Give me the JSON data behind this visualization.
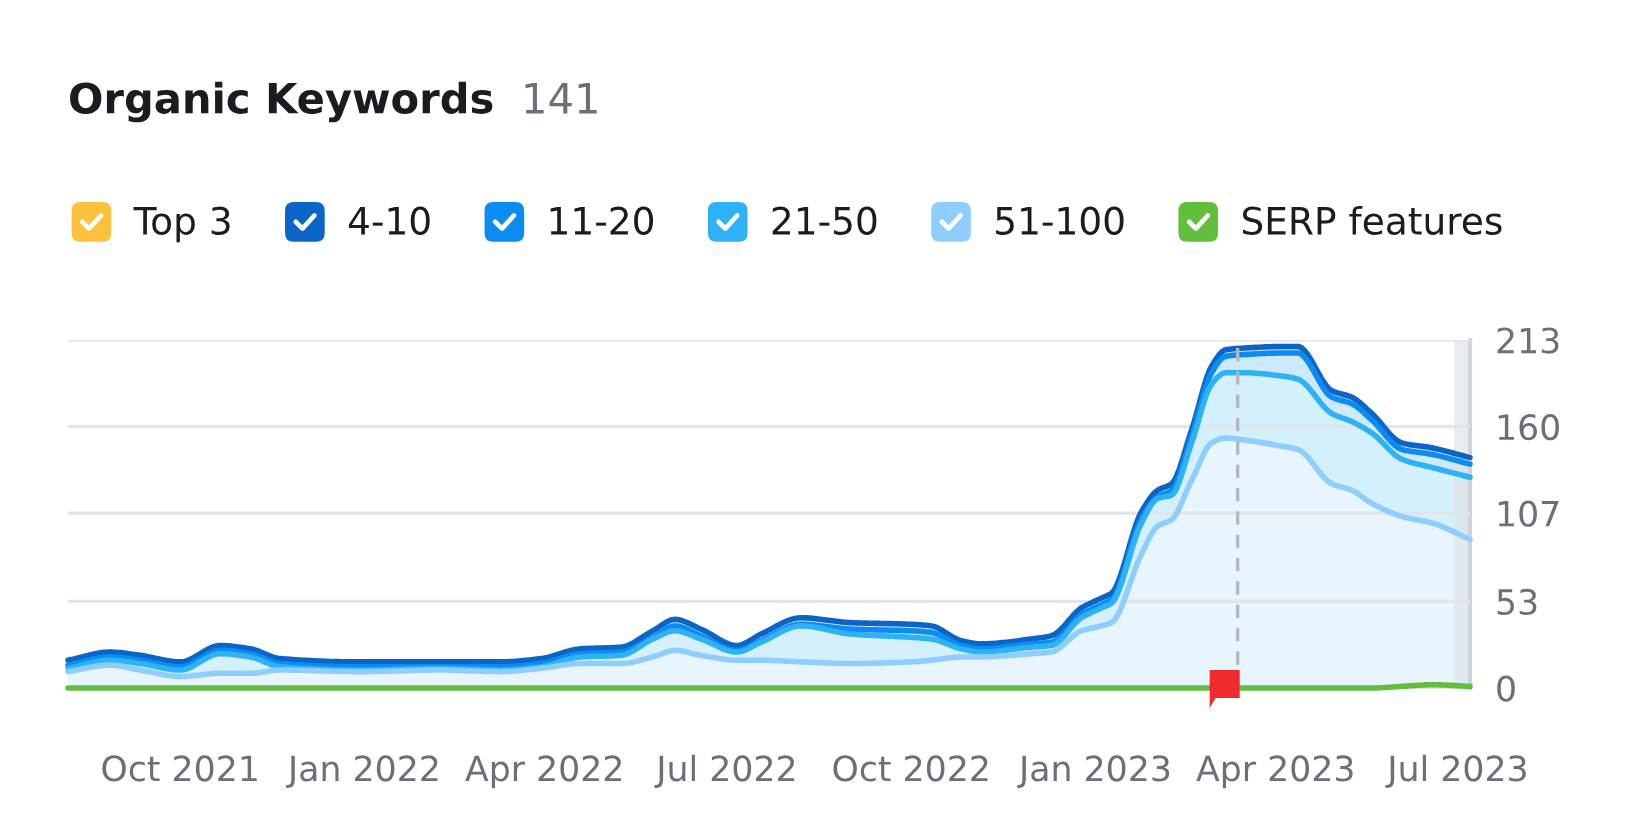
{
  "chart_data": {
    "type": "area",
    "title": "Organic Keywords",
    "subtitle": "141",
    "stacked": true,
    "grid": "y",
    "legend": "top",
    "x": [
      "2021-08-06",
      "2021-08-27",
      "2021-09-11",
      "2021-10-01",
      "2021-10-21",
      "2021-11-05",
      "2021-11-20",
      "2021-12-30",
      "2022-02-08",
      "2022-03-10",
      "2022-03-30",
      "2022-04-19",
      "2022-05-09",
      "2022-05-25",
      "2022-06-05",
      "2022-06-18",
      "2022-07-06",
      "2022-07-18",
      "2022-08-07",
      "2022-09-01",
      "2022-10-01",
      "2022-10-11",
      "2022-10-26",
      "2022-11-05",
      "2022-11-30",
      "2022-12-10",
      "2022-12-25",
      "2023-01-04",
      "2023-01-09",
      "2023-01-24",
      "2023-02-01",
      "2023-02-08",
      "2023-02-18",
      "2023-02-28",
      "2023-03-07",
      "2023-03-15",
      "2023-04-04",
      "2023-04-12",
      "2023-04-29",
      "2023-05-09",
      "2023-05-19",
      "2023-06-03",
      "2023-06-18",
      "2023-07-07"
    ],
    "series": [
      {
        "name": "51-100",
        "color": "#8ecdfd",
        "values": [
          10,
          14,
          11,
          7,
          9,
          9,
          11,
          10,
          11,
          10,
          12,
          15,
          15,
          19,
          23,
          20,
          17,
          17,
          16,
          15,
          16,
          17,
          19,
          19,
          21,
          22,
          35,
          38,
          40,
          82,
          99,
          103,
          127,
          150,
          153,
          152,
          148,
          146,
          125,
          121,
          113,
          105,
          101,
          91
        ]
      },
      {
        "name": "21-50",
        "color": "#2eb2f6",
        "values": [
          2,
          3,
          4,
          4,
          12,
          10,
          2,
          1,
          1,
          1,
          1,
          4,
          5,
          11,
          12,
          10,
          5,
          11,
          22,
          18,
          15,
          13,
          5,
          3,
          4,
          4,
          8,
          11,
          12,
          19,
          17,
          15,
          23,
          36,
          40,
          41,
          43,
          43,
          43,
          42,
          43,
          35,
          34,
          38
        ]
      },
      {
        "name": "11-20",
        "color": "#0a8cf3",
        "values": [
          2,
          2,
          2,
          2,
          2,
          2,
          2,
          2,
          1,
          2,
          2,
          2,
          2,
          1,
          3,
          2,
          1,
          1,
          1,
          3,
          4,
          4,
          2,
          2,
          2,
          2,
          2,
          2,
          2,
          3,
          1,
          3,
          4,
          7,
          10,
          11,
          14,
          16,
          10,
          11,
          8,
          6,
          8,
          8
        ]
      },
      {
        "name": "4-10",
        "color": "#0b64c7",
        "values": [
          3,
          3,
          3,
          3,
          3,
          3,
          3,
          3,
          3,
          3,
          3,
          3,
          3,
          4,
          4,
          4,
          3,
          4,
          4,
          4,
          4,
          4,
          3,
          3,
          3,
          4,
          4,
          4,
          4,
          4,
          4,
          4,
          4,
          4,
          4,
          4,
          4,
          4,
          4,
          4,
          4,
          4,
          4,
          4
        ]
      },
      {
        "name": "Top 3",
        "color": "#fec13b",
        "values": [
          null,
          null,
          null,
          null,
          null,
          null,
          null,
          null,
          null,
          null,
          null,
          null,
          null,
          null,
          null,
          null,
          null,
          null,
          null,
          null,
          null,
          null,
          null,
          null,
          null,
          null,
          null,
          null,
          null,
          null,
          null,
          null,
          null,
          null,
          null,
          null,
          null,
          null,
          null,
          null,
          null,
          null,
          null,
          null
        ]
      },
      {
        "name": "SERP features",
        "color": "#62bf3b",
        "type": "line",
        "values": [
          0,
          0,
          0,
          0,
          0,
          0,
          0,
          0,
          0,
          0,
          0,
          0,
          0,
          0,
          0,
          0,
          0,
          0,
          0,
          0,
          0,
          0,
          0,
          0,
          0,
          0,
          0,
          0,
          0,
          0,
          0,
          0,
          0,
          0,
          0,
          0,
          0,
          0,
          0,
          0,
          0,
          1,
          2,
          1
        ]
      }
    ],
    "xlim": [
      "2021-08-06",
      "2023-07-07"
    ],
    "xticks": [
      {
        "value": "2021-10-01",
        "label": "Oct 2021"
      },
      {
        "value": "2022-01-01",
        "label": "Jan 2022"
      },
      {
        "value": "2022-04-01",
        "label": "Apr 2022"
      },
      {
        "value": "2022-07-01",
        "label": "Jul 2022"
      },
      {
        "value": "2022-10-01",
        "label": "Oct 2022"
      },
      {
        "value": "2023-01-01",
        "label": "Jan 2023"
      },
      {
        "value": "2023-04-01",
        "label": "Apr 2023"
      },
      {
        "value": "2023-07-01",
        "label": "Jul 2023"
      }
    ],
    "ylim": [
      0,
      213
    ],
    "yticks": [
      0,
      53,
      107,
      160,
      213
    ],
    "ref_lines": [
      {
        "axis": "x",
        "value": "2023-03-13",
        "color": "#b4b7bd",
        "line_style": "dashed"
      }
    ],
    "bands": [
      {
        "axis": "x",
        "from": "2023-06-29",
        "to": "2023-07-07",
        "color": "#dde2e5"
      }
    ]
  }
}
